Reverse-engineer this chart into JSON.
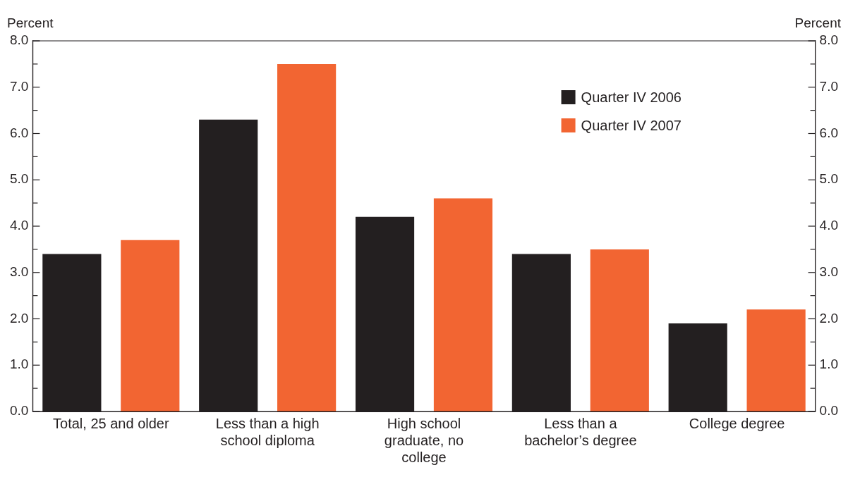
{
  "chart_data": {
    "type": "bar",
    "categories": [
      "Total, 25 and older",
      "Less than a high school diploma",
      "High school graduate, no college",
      "Less than a bachelor’s degree",
      "College degree"
    ],
    "series": [
      {
        "name": "Quarter IV 2006",
        "color": "#231f20",
        "values": [
          3.4,
          6.3,
          4.2,
          3.4,
          1.9
        ]
      },
      {
        "name": "Quarter IV 2007",
        "color": "#f26532",
        "values": [
          3.7,
          7.5,
          4.6,
          3.5,
          2.2
        ]
      }
    ],
    "ylabel": "Percent",
    "y2label": "Percent",
    "ylim": [
      0,
      8
    ],
    "y2lim": [
      0,
      8
    ],
    "yticks": [
      {
        "value": 0,
        "label": "0.0"
      },
      {
        "value": 0.5,
        "label": null
      },
      {
        "value": 1,
        "label": "1.0"
      },
      {
        "value": 1.5,
        "label": null
      },
      {
        "value": 2,
        "label": "2.0"
      },
      {
        "value": 2.5,
        "label": null
      },
      {
        "value": 3,
        "label": "3.0"
      },
      {
        "value": 3.5,
        "label": null
      },
      {
        "value": 4,
        "label": "4.0"
      },
      {
        "value": 4.5,
        "label": null
      },
      {
        "value": 5,
        "label": "5.0"
      },
      {
        "value": 5.5,
        "label": null
      },
      {
        "value": 6,
        "label": "6.0"
      },
      {
        "value": 6.5,
        "label": null
      },
      {
        "value": 7,
        "label": "7.0"
      },
      {
        "value": 7.5,
        "label": null
      },
      {
        "value": 8,
        "label": "8.0"
      }
    ],
    "y2ticks": [
      {
        "value": 0,
        "label": "0.0"
      },
      {
        "value": 0.5,
        "label": null
      },
      {
        "value": 1,
        "label": "1.0"
      },
      {
        "value": 1.5,
        "label": null
      },
      {
        "value": 2,
        "label": "2.0"
      },
      {
        "value": 2.5,
        "label": null
      },
      {
        "value": 3,
        "label": "3.0"
      },
      {
        "value": 3.5,
        "label": null
      },
      {
        "value": 4,
        "label": "4.0"
      },
      {
        "value": 4.5,
        "label": null
      },
      {
        "value": 5,
        "label": "5.0"
      },
      {
        "value": 5.5,
        "label": null
      },
      {
        "value": 6,
        "label": "6.0"
      },
      {
        "value": 6.5,
        "label": null
      },
      {
        "value": 7,
        "label": "7.0"
      },
      {
        "value": 7.5,
        "label": null
      },
      {
        "value": 8,
        "label": "8.0"
      }
    ],
    "legend": "top right",
    "grid": false
  }
}
